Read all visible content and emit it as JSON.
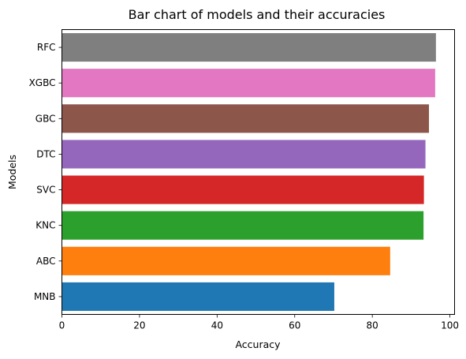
{
  "chart_data": {
    "type": "bar",
    "orientation": "horizontal",
    "title": "Bar chart of models and their accuracies",
    "xlabel": "Accuracy",
    "ylabel": "Models",
    "categories": [
      "MNB",
      "ABC",
      "KNC",
      "SVC",
      "DTC",
      "GBC",
      "XGBC",
      "RFC"
    ],
    "values": [
      70.2,
      84.6,
      93.2,
      93.3,
      93.7,
      94.6,
      96.2,
      96.4
    ],
    "colors": [
      "#1f77b4",
      "#ff7f0e",
      "#2ca02c",
      "#d62728",
      "#9467bd",
      "#8c564b",
      "#e377c2",
      "#7f7f7f"
    ],
    "xlim": [
      0,
      101.2
    ],
    "xticks": [
      0,
      20,
      40,
      60,
      80,
      100
    ],
    "grid": false,
    "legend": "none"
  }
}
